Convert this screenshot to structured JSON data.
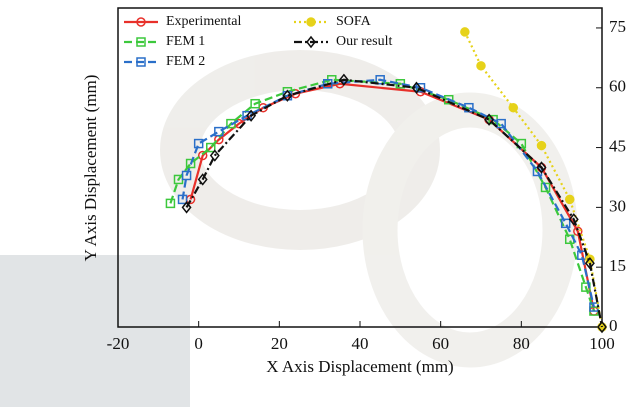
{
  "chart_data": {
    "type": "line",
    "x_label": "X Axis Displacement (mm)",
    "y_label": "Y Axis Displacement (mm)",
    "xlim": [
      -20,
      100
    ],
    "xticks": [
      -20,
      0,
      20,
      40,
      60,
      80,
      100
    ],
    "ylim": [
      0,
      80
    ],
    "yticks": [
      0,
      15,
      30,
      45,
      60,
      75
    ],
    "legend": "upper-left",
    "series": [
      {
        "name": "Experimental",
        "color": "#e8302a",
        "dash": "solid",
        "marker": "circle",
        "x": [
          -2,
          1,
          5,
          10,
          16,
          24,
          35,
          55,
          72,
          85,
          94,
          98
        ],
        "values": [
          32,
          43,
          47,
          51,
          55,
          58.5,
          61,
          59,
          52,
          40,
          24,
          4
        ]
      },
      {
        "name": "FEM 1",
        "color": "#3cc83c",
        "dash": "dashed",
        "marker": "square",
        "x": [
          -7,
          -5,
          -2,
          3,
          8,
          14,
          22,
          33,
          50,
          62,
          73,
          80,
          86,
          92,
          96,
          98
        ],
        "values": [
          31,
          37,
          41,
          45,
          51,
          56,
          59,
          62,
          61,
          57,
          52,
          46,
          35,
          22,
          10,
          4
        ]
      },
      {
        "name": "FEM 2",
        "color": "#2a6fc9",
        "dash": "dashed",
        "marker": "square",
        "x": [
          -4,
          -3,
          0,
          5,
          12,
          22,
          32,
          45,
          55,
          67,
          75,
          84,
          91,
          95,
          98
        ],
        "values": [
          32,
          38,
          46,
          49,
          53,
          58,
          61,
          62,
          60,
          55,
          51,
          39,
          26,
          18,
          5
        ]
      },
      {
        "name": "SOFA",
        "color": "#e6d21a",
        "dash": "dotted",
        "marker": "circle",
        "x": [
          66,
          70,
          78,
          85,
          92,
          97,
          100
        ],
        "values": [
          74,
          65.5,
          55,
          45.5,
          32,
          17,
          0
        ]
      },
      {
        "name": "Our result",
        "color": "#111111",
        "dash": "dashdot",
        "marker": "diamond",
        "x": [
          -3,
          1,
          4,
          13,
          22,
          36,
          54,
          72,
          85,
          93,
          97,
          100
        ],
        "values": [
          30,
          37,
          43,
          53,
          58,
          62,
          60,
          52,
          40,
          27,
          16,
          0
        ]
      }
    ]
  }
}
